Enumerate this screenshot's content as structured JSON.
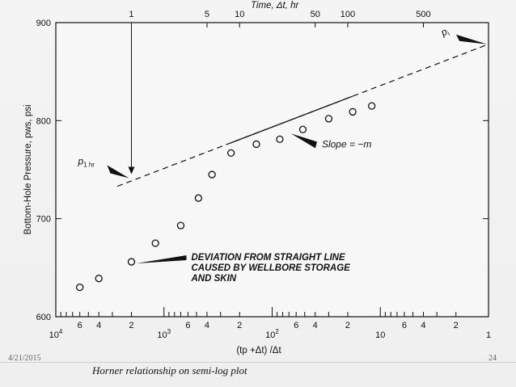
{
  "slide": {
    "date": "4/21/2015",
    "page": "24",
    "caption": "Horner relationship on semi-log plot"
  },
  "chart_data": {
    "type": "scatter",
    "title": "",
    "xlabel": "(tp +Δt) /Δt",
    "ylabel": "Bottom-Hole Pressure, pws, psi",
    "x_scale": "log-reversed",
    "xlim": [
      10000,
      1
    ],
    "ylim": [
      600,
      900
    ],
    "x_major_ticks": [
      {
        "value": 10000,
        "base": "10",
        "exp": "4"
      },
      {
        "value": 1000,
        "base": "10",
        "exp": "3"
      },
      {
        "value": 100,
        "base": "10",
        "exp": "2"
      },
      {
        "value": 10,
        "label": "10"
      },
      {
        "value": 1,
        "label": "1"
      }
    ],
    "x_minor_labels": [
      {
        "value": 6000,
        "label": "6"
      },
      {
        "value": 4000,
        "label": "4"
      },
      {
        "value": 2000,
        "label": "2"
      },
      {
        "value": 600,
        "label": "6"
      },
      {
        "value": 400,
        "label": "4"
      },
      {
        "value": 200,
        "label": "2"
      },
      {
        "value": 60,
        "label": "6"
      },
      {
        "value": 40,
        "label": "4"
      },
      {
        "value": 20,
        "label": "2"
      },
      {
        "value": 6,
        "label": "6"
      },
      {
        "value": 4,
        "label": "4"
      },
      {
        "value": 2,
        "label": "2"
      }
    ],
    "y_ticks": [
      {
        "value": 600,
        "label": "600"
      },
      {
        "value": 700,
        "label": "700"
      },
      {
        "value": 800,
        "label": "800"
      },
      {
        "value": 900,
        "label": "900"
      }
    ],
    "top_axis": {
      "label": "Time, Δt, hr",
      "ticks": [
        {
          "value": 2000,
          "label": "1"
        },
        {
          "value": 400,
          "label": "5"
        },
        {
          "value": 200,
          "label": "10"
        },
        {
          "value": 40,
          "label": "50"
        },
        {
          "value": 20,
          "label": "100"
        },
        {
          "value": 4,
          "label": "500"
        }
      ]
    },
    "series": [
      {
        "points": [
          {
            "x": 6000,
            "y": 630
          },
          {
            "x": 4000,
            "y": 639
          },
          {
            "x": 2000,
            "y": 656
          },
          {
            "x": 1200,
            "y": 675
          },
          {
            "x": 700,
            "y": 693
          },
          {
            "x": 480,
            "y": 721
          },
          {
            "x": 360,
            "y": 745
          },
          {
            "x": 240,
            "y": 767
          },
          {
            "x": 140,
            "y": 776
          },
          {
            "x": 85,
            "y": 781
          },
          {
            "x": 52,
            "y": 791
          },
          {
            "x": 30,
            "y": 802
          },
          {
            "x": 18,
            "y": 809
          },
          {
            "x": 12,
            "y": 815
          }
        ]
      }
    ],
    "straight_line": {
      "x_start": 2700,
      "y_start": 733,
      "x_end": 1,
      "y_end": 878,
      "solid_from_x": 240,
      "solid_to_x": 18
    },
    "annotations": {
      "p1hr": {
        "text_main": "p",
        "text_sub": "1 hr",
        "x": 2000,
        "y": 743
      },
      "pi": {
        "text_main": "p",
        "text_sub": "i",
        "x": 1,
        "y": 878
      },
      "slope": {
        "text": "Slope = −m",
        "x": 85,
        "y": 781
      },
      "deviation": {
        "lines": [
          "DEVIATION FROM STRAIGHT LINE",
          "CAUSED BY WELLBORE STORAGE",
          "AND SKIN"
        ],
        "x": 2000,
        "y": 656
      }
    }
  }
}
